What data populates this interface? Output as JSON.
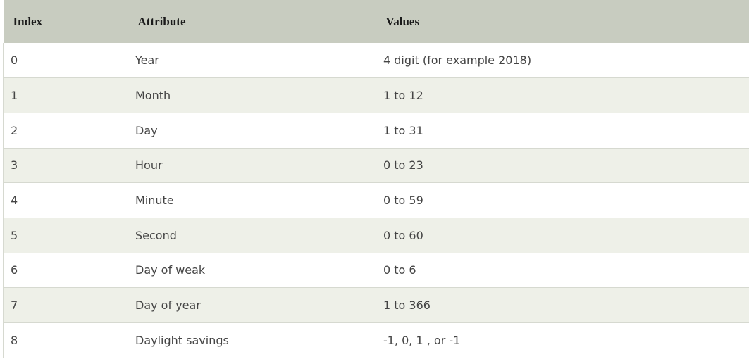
{
  "table": {
    "headers": [
      "Index",
      "Attribute",
      "Values"
    ],
    "rows": [
      [
        "0",
        "Year",
        "4 digit (for example 2018)"
      ],
      [
        "1",
        "Month",
        "1 to 12"
      ],
      [
        "2",
        "Day",
        "1 to 31"
      ],
      [
        "3",
        "Hour",
        "0 to 23"
      ],
      [
        "4",
        "Minute",
        "0 to 59"
      ],
      [
        "5",
        "Second",
        "0 to 60"
      ],
      [
        "6",
        "Day of weak",
        "0 to 6"
      ],
      [
        "7",
        "Day of year",
        "1 to 366"
      ],
      [
        "8",
        "Daylight savings",
        "-1, 0, 1 , or -1"
      ]
    ]
  }
}
